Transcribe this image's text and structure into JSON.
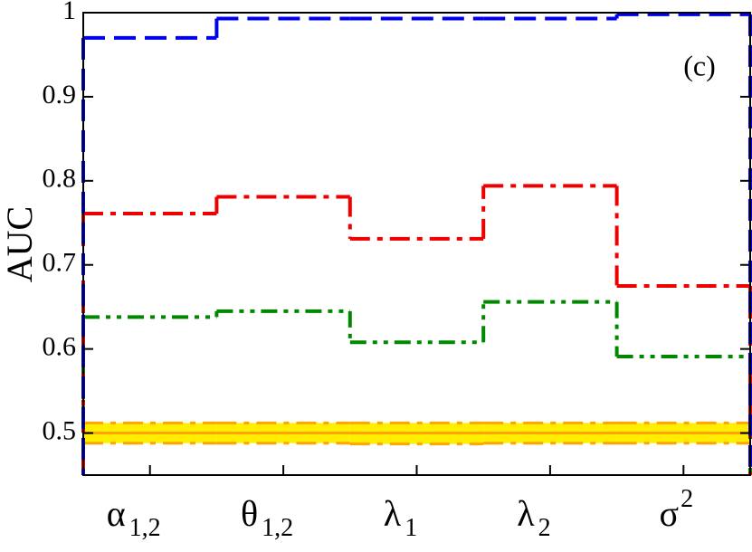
{
  "chart_data": {
    "type": "step",
    "ylabel": "AUC",
    "annotation": "(c)",
    "categories": [
      {
        "base": "α",
        "sub": "1,2"
      },
      {
        "base": "θ",
        "sub": "1,2"
      },
      {
        "base": "λ",
        "sub": "1"
      },
      {
        "base": "λ",
        "sub": "2"
      },
      {
        "base": "σ",
        "sup": "2"
      }
    ],
    "ylim": [
      0.45,
      1
    ],
    "yticks": [
      0.5,
      0.6,
      0.7,
      0.8,
      0.9,
      1
    ],
    "band": {
      "color": "#ffee00",
      "line_color": "#ffa500",
      "style": "dashdot",
      "lower": [
        0.488,
        0.488,
        0.487,
        0.488,
        0.488
      ],
      "upper": [
        0.512,
        0.512,
        0.512,
        0.512,
        0.512
      ]
    },
    "series": [
      {
        "color": "#0000ee",
        "style": "dashed",
        "values": [
          0.97,
          0.993,
          0.993,
          0.993,
          0.998
        ]
      },
      {
        "color": "#ee0000",
        "style": "dashdot",
        "values": [
          0.761,
          0.781,
          0.731,
          0.794,
          0.675
        ]
      },
      {
        "color": "#008800",
        "style": "dashdotdot",
        "values": [
          0.638,
          0.645,
          0.608,
          0.656,
          0.591
        ]
      },
      {
        "color": "#ffa500",
        "style": "solid",
        "values": [
          0.5,
          0.5,
          0.5,
          0.5,
          0.5
        ]
      }
    ]
  }
}
